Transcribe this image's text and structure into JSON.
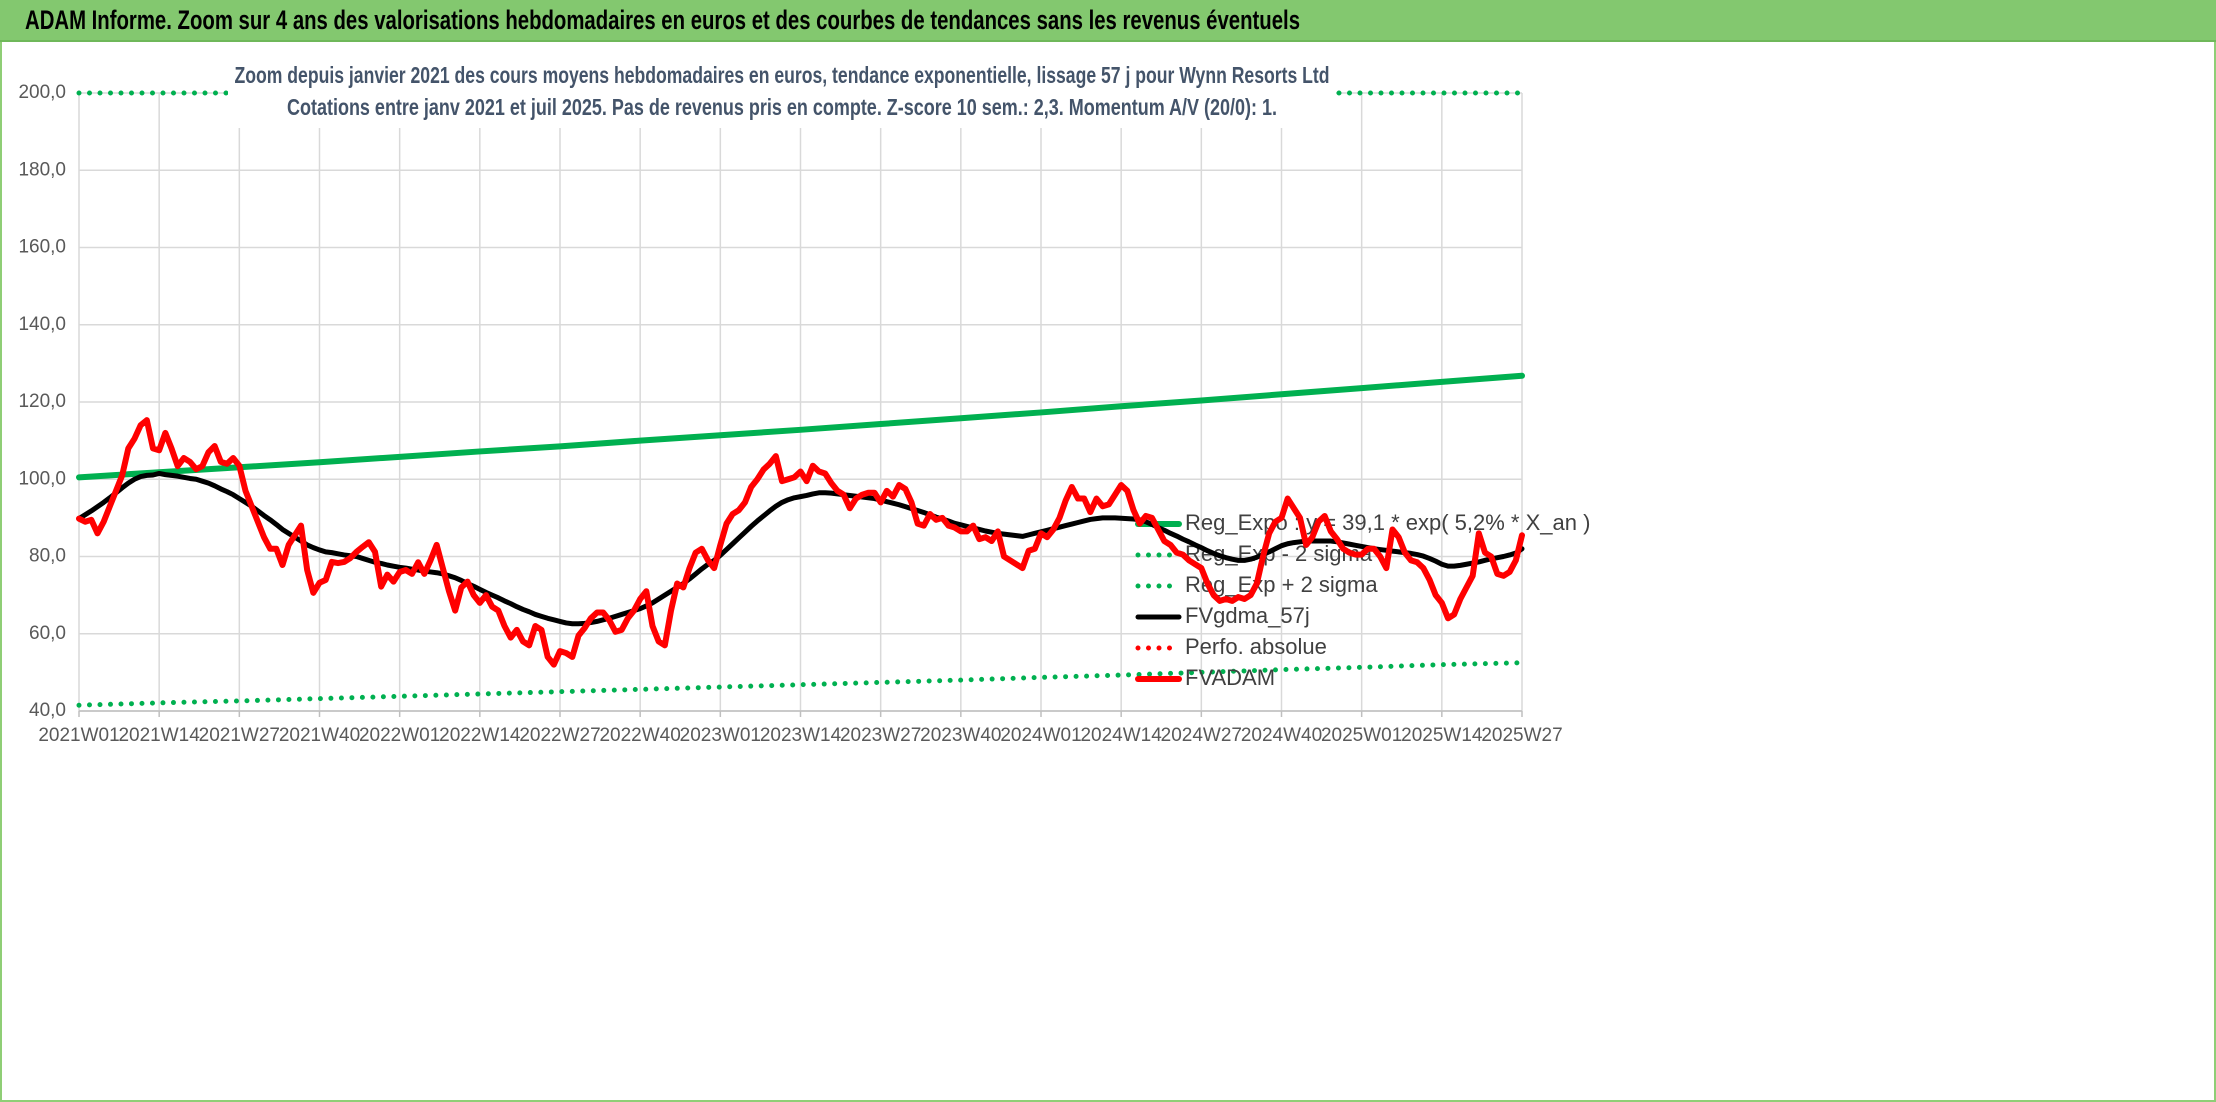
{
  "header": {
    "title": "ADAM Informe. Zoom sur 4 ans des valorisations hebdomadaires en euros et des courbes de tendances sans les revenus éventuels"
  },
  "chart_data": [
    {
      "type": "line",
      "categories": [
        "2021W01",
        "2021W14",
        "2021W27",
        "2021W40",
        "2022W01",
        "2022W14",
        "2022W27",
        "2022W40",
        "2023W01",
        "2023W14",
        "2023W27",
        "2023W40",
        "2024W01",
        "2024W14",
        "2024W27",
        "2024W40",
        "2025W01",
        "2025W14",
        "2025W27"
      ],
      "series": [
        {
          "name": "Reg_Expo : y = 39,1 * exp( 5,2% *  X_an )",
          "color": "#00b050",
          "style": "solid",
          "values": [
            100.5,
            101.8,
            103.1,
            104.4,
            105.8,
            107.2,
            108.5,
            110,
            111.4,
            112.8,
            114.3,
            115.8,
            117.3,
            118.9,
            120.4,
            122,
            123.6,
            125.2,
            126.8
          ]
        },
        {
          "name": "Reg_Exp - 2 sigma",
          "color": "#00b050",
          "style": "dotted",
          "values": [
            41.5,
            42.1,
            42.6,
            43.2,
            43.8,
            44.4,
            45,
            45.6,
            46.2,
            46.8,
            47.4,
            48,
            48.7,
            49.3,
            50,
            50.7,
            51.3,
            52,
            52.5
          ]
        },
        {
          "name": "Reg_Exp + 2 sigma",
          "color": "#00b050",
          "style": "dotted",
          "values": [
            200,
            200,
            200,
            200,
            200,
            200,
            200,
            200,
            200,
            200,
            200,
            200,
            200,
            200,
            200,
            200,
            200,
            200,
            200
          ]
        }
      ]
    },
    {
      "type": "line",
      "title": "Zoom depuis janvier 2021 des cours moyens hebdomadaires en euros, tendance exponentielle, lissage 57 j pour Wynn Resorts Ltd",
      "subtitle": "Cotations entre janv 2021 et juil 2025. Pas de revenus pris en compte. Z-score 10 sem.: 2,3. Momentum A/V (20/0): 1.",
      "ylim": [
        40,
        200
      ],
      "yticks": [
        {
          "value": 40,
          "label": "40,0"
        },
        {
          "value": 60,
          "label": "60,0"
        },
        {
          "value": 80,
          "label": "80,0"
        },
        {
          "value": 100,
          "label": "100,0"
        },
        {
          "value": 120,
          "label": "120,0"
        },
        {
          "value": 140,
          "label": "140,0"
        },
        {
          "value": 160,
          "label": "160,0"
        },
        {
          "value": 180,
          "label": "180,0"
        },
        {
          "value": 200,
          "label": "200,0"
        }
      ],
      "grid": true,
      "legend": "lower right",
      "categories": [
        "2021W01",
        null,
        null,
        null,
        null,
        null,
        null,
        null,
        null,
        null,
        null,
        null,
        null,
        "2021W14",
        null,
        null,
        null,
        null,
        null,
        null,
        null,
        null,
        null,
        null,
        null,
        null,
        "2021W27",
        null,
        null,
        null,
        null,
        null,
        null,
        null,
        null,
        null,
        null,
        null,
        null,
        "2021W40",
        null,
        null,
        null,
        null,
        null,
        null,
        null,
        null,
        null,
        null,
        null,
        null,
        "2022W01",
        null,
        null,
        null,
        null,
        null,
        null,
        null,
        null,
        null,
        null,
        null,
        null,
        "2022W14",
        null,
        null,
        null,
        null,
        null,
        null,
        null,
        null,
        null,
        null,
        null,
        null,
        "2022W27",
        null,
        null,
        null,
        null,
        null,
        null,
        null,
        null,
        null,
        null,
        null,
        null,
        "2022W40",
        null,
        null,
        null,
        null,
        null,
        null,
        null,
        null,
        null,
        null,
        null,
        null,
        "2023W01",
        null,
        null,
        null,
        null,
        null,
        null,
        null,
        null,
        null,
        null,
        null,
        null,
        "2023W14",
        null,
        null,
        null,
        null,
        null,
        null,
        null,
        null,
        null,
        null,
        null,
        null,
        "2023W27",
        null,
        null,
        null,
        null,
        null,
        null,
        null,
        null,
        null,
        null,
        null,
        null,
        "2023W40",
        null,
        null,
        null,
        null,
        null,
        null,
        null,
        null,
        null,
        null,
        null,
        null,
        "2024W01",
        null,
        null,
        null,
        null,
        null,
        null,
        null,
        null,
        null,
        null,
        null,
        null,
        "2024W14",
        null,
        null,
        null,
        null,
        null,
        null,
        null,
        null,
        null,
        null,
        null,
        null,
        "2024W27",
        null,
        null,
        null,
        null,
        null,
        null,
        null,
        null,
        null,
        null,
        null,
        null,
        "2024W40",
        null,
        null,
        null,
        null,
        null,
        null,
        null,
        null,
        null,
        null,
        null,
        null,
        "2025W01",
        null,
        null,
        null,
        null,
        null,
        null,
        null,
        null,
        null,
        null,
        null,
        null,
        "2025W14",
        null,
        null,
        null,
        null,
        null,
        null,
        null,
        null,
        null,
        null,
        null,
        null,
        "2025W27"
      ],
      "series": [
        {
          "name": "FVgdma_57j",
          "color": "#000000",
          "style": "solid",
          "values": [
            89.8,
            90.8,
            91.8,
            92.9,
            94,
            95.2,
            96.5,
            97.8,
            99,
            100,
            100.7,
            101,
            101.1,
            101.5,
            101.2,
            101,
            100.8,
            100.5,
            100.2,
            100,
            99.5,
            99,
            98.3,
            97.5,
            96.8,
            96,
            95,
            94,
            93,
            91.8,
            90.6,
            89.5,
            88.3,
            87,
            86,
            85,
            84,
            83,
            82.3,
            81.7,
            81.2,
            81,
            80.7,
            80.4,
            80.2,
            80,
            79.5,
            79,
            78.5,
            78.2,
            77.8,
            77.5,
            77.2,
            77,
            76.7,
            76.5,
            76.2,
            76,
            75.8,
            75.5,
            75,
            74.5,
            73.8,
            73,
            72.3,
            71.5,
            70.7,
            70,
            69.3,
            68.5,
            67.8,
            67,
            66.3,
            65.7,
            65,
            64.5,
            64,
            63.6,
            63.2,
            62.8,
            62.6,
            62.6,
            62.7,
            62.9,
            63.2,
            63.6,
            64,
            64.5,
            65,
            65.5,
            66,
            66.5,
            67.2,
            68,
            69,
            70,
            71,
            72,
            73,
            74.2,
            75.5,
            76.8,
            78,
            79,
            80.3,
            81.8,
            83.3,
            84.8,
            86.3,
            87.8,
            89.2,
            90.5,
            91.8,
            93,
            94,
            94.7,
            95.2,
            95.5,
            95.8,
            96.2,
            96.5,
            96.5,
            96.4,
            96.2,
            96,
            95.8,
            95.6,
            95.4,
            95.2,
            95,
            94.6,
            94.2,
            93.8,
            93.4,
            92.9,
            92.4,
            91.9,
            91.4,
            90.8,
            90.2,
            89.7,
            89.2,
            88.6,
            88.2,
            87.8,
            87.4,
            87,
            86.6,
            86.3,
            86,
            85.8,
            85.6,
            85.4,
            85.2,
            85.6,
            86,
            86.4,
            86.8,
            87.2,
            87.6,
            88,
            88.4,
            88.8,
            89.2,
            89.6,
            89.8,
            90,
            90,
            90,
            89.9,
            89.8,
            89.7,
            89.5,
            89,
            88.3,
            87.5,
            86.8,
            86,
            85.3,
            84.5,
            83.8,
            83,
            82.3,
            81.5,
            80.8,
            80.2,
            79.7,
            79.3,
            79,
            79,
            79.3,
            79.8,
            80.5,
            81.2,
            82,
            82.8,
            83.3,
            83.6,
            83.8,
            84,
            84,
            84,
            84,
            84,
            83.8,
            83.5,
            83.2,
            82.9,
            82.6,
            82.3,
            82,
            81.8,
            81.6,
            81.4,
            81.2,
            81,
            80.8,
            80.5,
            80.1,
            79.5,
            78.8,
            78,
            77.5,
            77.5,
            77.7,
            78,
            78.3,
            78.6,
            79,
            79.4,
            79.7,
            80,
            80.4,
            80.9,
            82
          ]
        },
        {
          "name": "Perfo. absolue",
          "color": "#ff0000",
          "style": "dotted",
          "values": [
            null,
            null,
            null,
            null,
            null,
            null,
            null,
            null,
            null,
            null,
            null,
            null,
            null,
            null,
            null,
            null,
            null,
            null,
            null,
            null,
            null,
            null,
            null,
            null,
            null,
            null,
            null,
            null,
            null,
            null,
            null,
            null,
            null,
            null,
            null,
            null,
            null,
            null,
            null,
            null,
            null,
            null,
            null,
            null,
            null,
            null,
            null,
            null,
            null,
            null,
            null,
            null,
            null,
            null,
            null,
            null,
            null,
            null,
            null,
            null,
            null,
            null,
            null,
            null,
            null,
            null,
            null,
            null,
            null,
            null,
            null,
            null,
            null,
            null,
            null,
            null,
            null,
            null,
            null,
            null,
            null,
            null,
            null,
            null,
            null,
            null,
            null,
            null,
            null,
            null,
            null,
            null,
            null,
            null,
            null,
            null,
            null,
            null,
            null,
            null,
            null,
            null,
            null,
            null,
            null,
            null,
            null,
            null,
            null,
            null,
            null,
            null,
            null,
            null,
            null,
            null,
            null,
            null,
            null,
            null,
            null,
            null,
            null,
            null,
            null,
            null,
            null,
            null,
            null,
            null,
            null,
            null,
            null,
            null,
            null,
            null,
            null,
            null,
            null,
            null,
            null,
            null,
            null,
            null,
            null,
            null,
            null,
            null,
            null,
            null,
            null,
            null,
            null,
            null,
            null,
            null,
            null,
            null,
            null,
            null,
            null,
            null,
            null,
            null,
            null,
            null,
            null,
            null,
            null,
            null,
            null,
            null,
            null,
            null,
            null,
            null,
            null,
            null,
            null,
            null,
            null,
            null,
            null,
            null,
            null,
            null,
            null,
            null,
            null,
            null,
            null,
            null,
            null,
            null,
            null,
            null,
            null,
            null,
            null,
            null,
            null,
            null,
            null,
            null,
            null,
            null,
            null,
            null,
            null,
            null,
            null,
            null,
            null,
            null,
            null,
            null,
            null,
            null,
            null,
            null,
            null,
            null,
            null,
            null,
            null,
            null,
            null,
            null,
            null,
            null,
            null,
            null,
            null,
            null,
            null
          ]
        },
        {
          "name": "FVADAM",
          "color": "#ff0000",
          "style": "solid",
          "values": [
            89.8,
            89,
            89.5,
            86,
            89,
            93,
            97,
            101,
            108,
            110.5,
            114,
            115.3,
            108,
            107.5,
            112,
            108,
            103.4,
            105.5,
            104.5,
            102.6,
            103.4,
            107,
            108.6,
            104.5,
            104,
            105.5,
            103.5,
            97,
            93,
            89,
            85,
            82,
            82,
            77.8,
            83,
            85.5,
            88,
            76.5,
            70.6,
            73.2,
            73.9,
            78.6,
            78.3,
            78.6,
            79.6,
            81.2,
            82.5,
            83.7,
            81.2,
            72.2,
            75.3,
            73.5,
            76,
            76.5,
            75.5,
            78.5,
            75.5,
            79,
            83,
            77,
            71,
            66,
            72,
            73.5,
            70,
            68,
            70,
            67,
            66,
            62,
            59,
            61,
            58,
            57,
            62,
            61,
            54,
            52,
            55.5,
            55,
            54,
            59.5,
            61.5,
            64,
            65.5,
            65.5,
            63.5,
            60.5,
            61,
            64,
            66,
            69,
            71,
            62,
            58,
            57,
            66,
            73,
            72,
            77,
            81,
            82,
            79,
            77,
            83,
            88.5,
            91,
            92,
            94,
            98,
            100,
            102.5,
            104,
            106,
            99.5,
            100,
            100.5,
            102,
            99.5,
            103.5,
            102,
            101.5,
            99,
            97,
            96,
            92.5,
            95,
            96,
            96.5,
            96.5,
            94,
            97,
            95.5,
            98.5,
            97.5,
            94,
            88.5,
            88,
            91,
            89.5,
            90,
            88,
            87.5,
            86.5,
            86.5,
            88,
            84.5,
            85,
            84,
            86.5,
            80,
            79,
            78,
            77,
            81.5,
            82,
            86,
            85,
            87,
            90,
            94.5,
            98,
            95,
            95,
            91.5,
            95,
            93,
            93.5,
            96,
            98.5,
            97,
            92,
            88.5,
            90.5,
            90,
            87,
            84,
            83,
            81,
            80.5,
            79,
            78,
            77,
            73,
            70,
            68.5,
            69,
            68.5,
            69.5,
            69,
            70,
            73,
            80,
            86,
            89,
            90,
            95,
            92.5,
            90,
            83,
            85,
            89,
            90.5,
            86.5,
            84.5,
            82,
            81,
            80.5,
            80.5,
            82,
            82,
            80,
            77,
            87,
            85,
            81,
            79,
            78.5,
            77,
            74,
            70,
            68,
            64,
            65,
            69,
            72,
            75,
            86,
            81,
            80,
            75.5,
            75,
            76,
            79,
            85.5
          ]
        }
      ]
    }
  ]
}
